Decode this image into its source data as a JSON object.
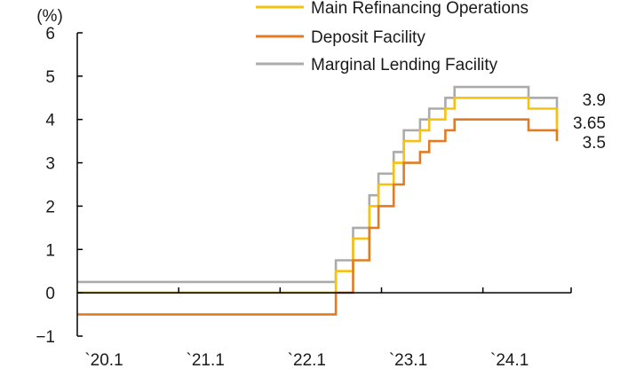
{
  "chart_data": {
    "type": "line",
    "step": true,
    "unit_label": "(%)",
    "xlim": [
      2020.0,
      2024.87
    ],
    "ylim": [
      -1,
      6
    ],
    "y_ticks": [
      -1,
      0,
      1,
      2,
      3,
      4,
      5,
      6
    ],
    "x_ticks": [
      {
        "value": 2020.0,
        "label": "`20.1"
      },
      {
        "value": 2021.0,
        "label": "`21.1"
      },
      {
        "value": 2022.0,
        "label": "`22.1"
      },
      {
        "value": 2023.0,
        "label": "`23.1"
      },
      {
        "value": 2024.0,
        "label": "`24.1"
      }
    ],
    "grid": false,
    "legend_position": "top-right",
    "series": [
      {
        "name": "Marginal Lending Facility",
        "color": "#ababab",
        "points": [
          [
            2020.0,
            0.25
          ],
          [
            2022.55,
            0.75
          ],
          [
            2022.72,
            1.5
          ],
          [
            2022.88,
            2.25
          ],
          [
            2022.97,
            2.75
          ],
          [
            2023.12,
            3.25
          ],
          [
            2023.22,
            3.75
          ],
          [
            2023.38,
            4.0
          ],
          [
            2023.47,
            4.25
          ],
          [
            2023.63,
            4.5
          ],
          [
            2023.72,
            4.75
          ],
          [
            2024.45,
            4.5
          ],
          [
            2024.73,
            3.9
          ]
        ],
        "end_label": "3.9"
      },
      {
        "name": "Main Refinancing Operations",
        "color": "#f6c20f",
        "points": [
          [
            2020.0,
            0.0
          ],
          [
            2022.55,
            0.5
          ],
          [
            2022.72,
            1.25
          ],
          [
            2022.88,
            2.0
          ],
          [
            2022.97,
            2.5
          ],
          [
            2023.12,
            3.0
          ],
          [
            2023.22,
            3.5
          ],
          [
            2023.38,
            3.75
          ],
          [
            2023.47,
            4.0
          ],
          [
            2023.63,
            4.25
          ],
          [
            2023.72,
            4.5
          ],
          [
            2024.45,
            4.25
          ],
          [
            2024.73,
            3.65
          ]
        ],
        "end_label": "3.65"
      },
      {
        "name": "Deposit Facility",
        "color": "#e07b26",
        "points": [
          [
            2020.0,
            -0.5
          ],
          [
            2022.55,
            0.0
          ],
          [
            2022.72,
            0.75
          ],
          [
            2022.88,
            1.5
          ],
          [
            2022.97,
            2.0
          ],
          [
            2023.12,
            2.5
          ],
          [
            2023.22,
            3.0
          ],
          [
            2023.38,
            3.25
          ],
          [
            2023.47,
            3.5
          ],
          [
            2023.63,
            3.75
          ],
          [
            2023.72,
            4.0
          ],
          [
            2024.45,
            3.75
          ],
          [
            2024.73,
            3.5
          ]
        ],
        "end_label": "3.5"
      }
    ],
    "legend": [
      {
        "name": "Main Refinancing Operations",
        "color": "#f6c20f"
      },
      {
        "name": "Deposit Facility",
        "color": "#e07b26"
      },
      {
        "name": "Marginal Lending Facility",
        "color": "#ababab"
      }
    ]
  }
}
